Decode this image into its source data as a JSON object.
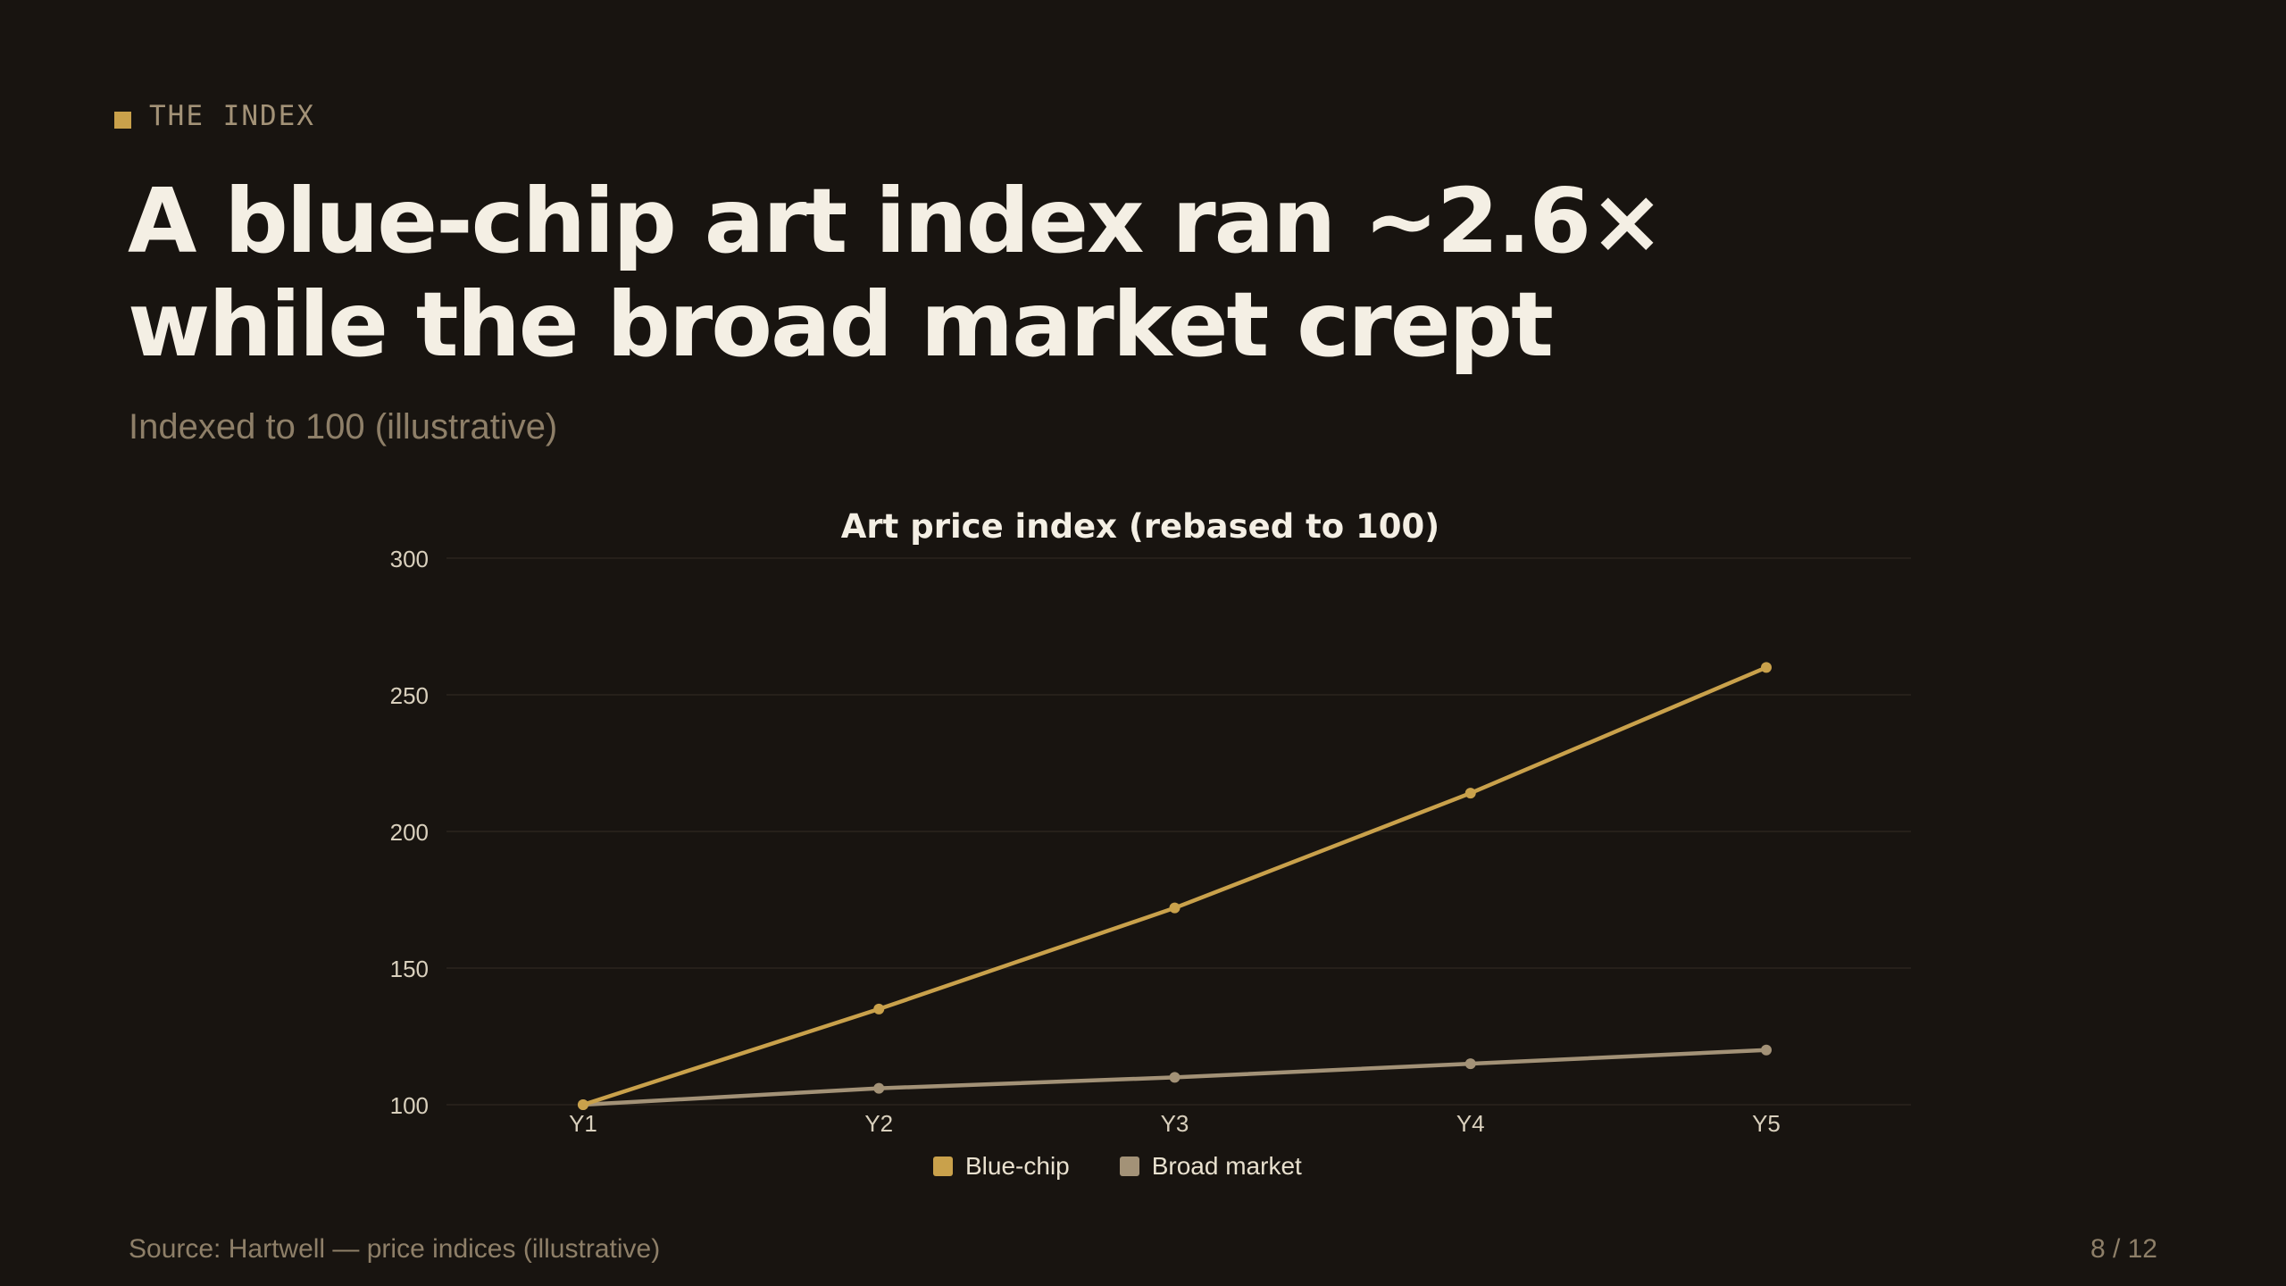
{
  "slide": {
    "eyebrow": "THE INDEX",
    "headline": "A blue-chip art index ran ~2.6× while the broad market crept",
    "subtitle": "Indexed to 100 (illustrative)",
    "source": "Source: Hartwell — price indices (illustrative)",
    "page": "8 / 12"
  },
  "colors": {
    "background": "#181410",
    "accent": "#c9a14b",
    "muted": "#a39277",
    "grid": "#2a251e"
  },
  "chart_data": {
    "type": "line",
    "title": "Art price index (rebased to 100)",
    "categories": [
      "Y1",
      "Y2",
      "Y3",
      "Y4",
      "Y5"
    ],
    "series": [
      {
        "name": "Blue-chip",
        "values": [
          100,
          135,
          172,
          214,
          260
        ],
        "color": "#c9a14b"
      },
      {
        "name": "Broad market",
        "values": [
          100,
          106,
          110,
          115,
          120
        ],
        "color": "#a39277"
      }
    ],
    "yticks": [
      100,
      150,
      200,
      250,
      300
    ],
    "ylim": [
      100,
      300
    ],
    "grid": true,
    "legend": "bottom-center"
  }
}
